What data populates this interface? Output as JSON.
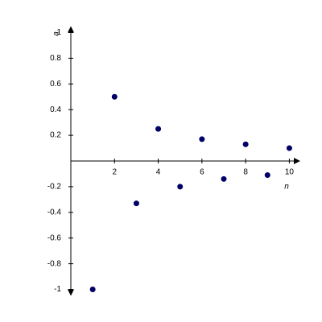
{
  "chart_data": {
    "type": "scatter",
    "x_label": "n",
    "y_label": "a",
    "x": [
      1,
      2,
      3,
      4,
      5,
      6,
      7,
      8,
      9,
      10
    ],
    "values": [
      -1,
      0.5,
      -0.33,
      0.25,
      -0.2,
      0.17,
      -0.14,
      0.13,
      -0.11,
      0.1
    ],
    "color": "#000066",
    "xlim": [
      0,
      10.5
    ],
    "ylim": [
      -1.05,
      1.05
    ],
    "xticks": [
      2,
      4,
      6,
      8,
      10
    ],
    "yticks": [
      -1,
      -0.8,
      -0.6,
      -0.4,
      -0.2,
      0.2,
      0.4,
      0.6,
      0.8,
      1
    ]
  }
}
